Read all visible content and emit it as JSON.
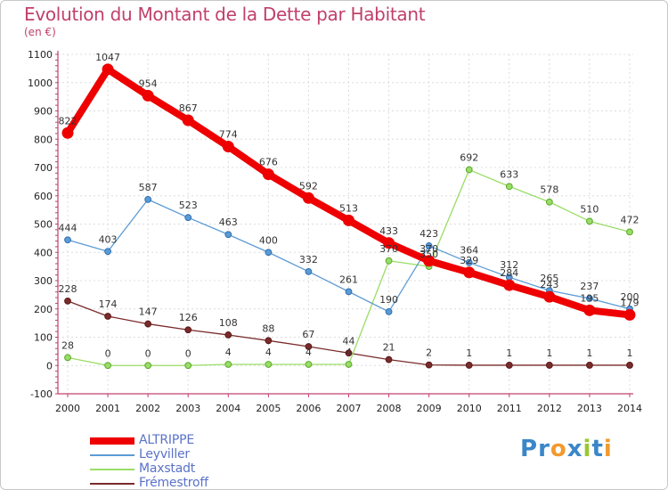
{
  "title": "Evolution du Montant de la Dette par Habitant",
  "subtitle": "(en €)",
  "logo": {
    "text": "Proxiti",
    "letters": [
      {
        "ch": "P",
        "color": "#3a86c8"
      },
      {
        "ch": "r",
        "color": "#3a86c8"
      },
      {
        "ch": "o",
        "color": "#f29a2e"
      },
      {
        "ch": "x",
        "color": "#3a86c8"
      },
      {
        "ch": "i",
        "color": "#9ac832"
      },
      {
        "ch": "t",
        "color": "#3a86c8"
      },
      {
        "ch": "i",
        "color": "#f29a2e"
      }
    ]
  },
  "chart_data": {
    "type": "line",
    "title": "Evolution du Montant de la Dette par Habitant",
    "ylabel": "(en €)",
    "xlabel": "",
    "x": [
      "2000",
      "2001",
      "2002",
      "2003",
      "2004",
      "2005",
      "2006",
      "2007",
      "2008",
      "2009",
      "2010",
      "2011",
      "2012",
      "2013",
      "2014"
    ],
    "ylim": [
      -100,
      1100
    ],
    "yticks": [
      -100,
      0,
      100,
      200,
      300,
      400,
      500,
      600,
      700,
      800,
      900,
      1000,
      1100
    ],
    "grid": true,
    "legend_position": "bottom-left",
    "series": [
      {
        "name": "ALTRIPPE",
        "color": "#ee0000",
        "width": 8,
        "values": [
          822,
          1047,
          954,
          867,
          774,
          676,
          592,
          513,
          433,
          370,
          329,
          284,
          243,
          195,
          179
        ]
      },
      {
        "name": "Leyviller",
        "color": "#5b9bd5",
        "width": 1.3,
        "values": [
          444,
          403,
          587,
          523,
          463,
          400,
          332,
          261,
          190,
          423,
          364,
          312,
          265,
          237,
          200
        ]
      },
      {
        "name": "Maxstadt",
        "color": "#99dd66",
        "width": 1.3,
        "values": [
          28,
          0,
          0,
          0,
          4,
          4,
          4,
          4,
          370,
          350,
          692,
          633,
          578,
          510,
          472
        ]
      },
      {
        "name": "Frémestroff",
        "color": "#7a2b2b",
        "width": 1.3,
        "values": [
          228,
          174,
          147,
          126,
          108,
          88,
          67,
          44,
          21,
          2,
          1,
          1,
          1,
          1,
          1
        ]
      }
    ]
  }
}
